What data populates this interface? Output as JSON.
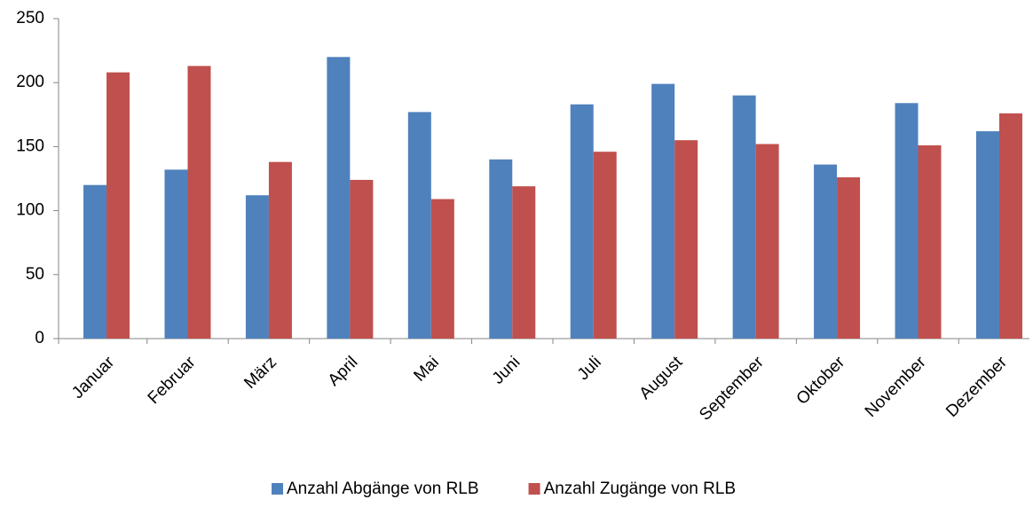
{
  "chart_data": {
    "type": "bar",
    "categories": [
      "Januar",
      "Februar",
      "März",
      "April",
      "Mai",
      "Juni",
      "Juli",
      "August",
      "September",
      "Oktober",
      "November",
      "Dezember"
    ],
    "series": [
      {
        "name": "Anzahl Abgänge von RLB",
        "color": "#4f81bd",
        "values": [
          120,
          132,
          112,
          220,
          177,
          140,
          183,
          199,
          190,
          136,
          184,
          162
        ]
      },
      {
        "name": "Anzahl Zugänge von RLB",
        "color": "#c0504d",
        "values": [
          208,
          213,
          138,
          124,
          109,
          119,
          146,
          155,
          152,
          126,
          151,
          176
        ]
      }
    ],
    "ylim": [
      0,
      250
    ],
    "yticks": [
      0,
      50,
      100,
      150,
      200,
      250
    ],
    "grid": false,
    "legend": "bottom"
  }
}
